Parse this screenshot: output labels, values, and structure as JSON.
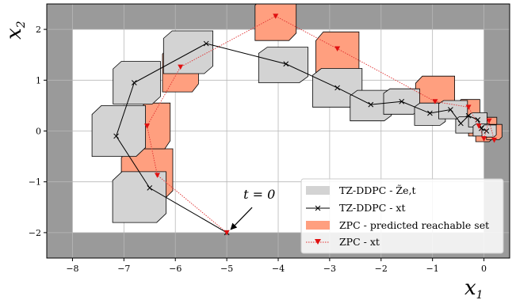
{
  "chart_data": {
    "type": "line",
    "xlabel": "x",
    "xlabel_sub": "1",
    "ylabel": "x",
    "ylabel_sub": "2",
    "xlim": [
      -8.5,
      0.5
    ],
    "ylim": [
      -2.5,
      2.5
    ],
    "xticks": [
      -8,
      -7,
      -6,
      -5,
      -4,
      -3,
      -2,
      -1,
      0
    ],
    "xtick_labels": [
      "−8",
      "−7",
      "−6",
      "−5",
      "−4",
      "−3",
      "−2",
      "−1",
      "0"
    ],
    "yticks": [
      -2,
      -1,
      0,
      1,
      2
    ],
    "ytick_labels": [
      "−2",
      "−1",
      "0",
      "1",
      "2"
    ],
    "grid": true,
    "legend_position": "lower-right",
    "constraint_box": {
      "x": [
        -8,
        0
      ],
      "y": [
        -2,
        2
      ]
    },
    "annotation": {
      "text": "t = 0",
      "point": [
        -5,
        -2
      ],
      "text_at": [
        -4.6,
        -1.38
      ]
    },
    "colors": {
      "outside_region": "#9a9a9a",
      "tzddpc_set_fill": "#d3d3d3",
      "zpc_set_fill": "#ff9f7f",
      "tzddpc_line": "#000000",
      "zpc_line": "#e03030",
      "zpc_marker": "#e01010"
    },
    "series": [
      {
        "name": "TZ-DDPC - Z̃e,t",
        "kind": "reachable_sets",
        "centers": [
          [
            -5.75,
            1.55
          ],
          [
            -6.75,
            0.95
          ],
          [
            -7.1,
            0.0
          ],
          [
            -6.7,
            -1.3
          ],
          [
            -3.9,
            1.3
          ],
          [
            -2.85,
            0.85
          ],
          [
            -2.2,
            0.5
          ],
          [
            -1.6,
            0.58
          ],
          [
            -1.05,
            0.33
          ],
          [
            -0.6,
            0.42
          ],
          [
            -0.35,
            0.12
          ],
          [
            -0.12,
            0.22
          ],
          [
            -0.05,
            0.02
          ],
          [
            0.1,
            0.0
          ]
        ],
        "half_widths": [
          [
            0.48,
            0.42
          ],
          [
            0.46,
            0.42
          ],
          [
            0.52,
            0.5
          ],
          [
            0.52,
            0.5
          ],
          [
            0.48,
            0.35
          ],
          [
            0.48,
            0.38
          ],
          [
            0.4,
            0.3
          ],
          [
            0.35,
            0.25
          ],
          [
            0.3,
            0.22
          ],
          [
            0.28,
            0.18
          ],
          [
            0.2,
            0.16
          ],
          [
            0.18,
            0.14
          ],
          [
            0.16,
            0.12
          ],
          [
            0.14,
            0.12
          ]
        ]
      },
      {
        "name": "TZ-DDPC - x_t",
        "kind": "trajectory",
        "x": [
          -5.0,
          -6.5,
          -7.15,
          -6.8,
          -5.4,
          -3.85,
          -2.85,
          -2.2,
          -1.6,
          -1.05,
          -0.65,
          -0.45,
          -0.3,
          -0.12,
          -0.05,
          0.05
        ],
        "y": [
          -2.0,
          -1.12,
          -0.1,
          0.95,
          1.72,
          1.32,
          0.85,
          0.52,
          0.58,
          0.35,
          0.42,
          0.15,
          0.3,
          0.22,
          0.05,
          0.0
        ]
      },
      {
        "name": "ZPC - predicted reachable set",
        "kind": "reachable_sets",
        "centers": [
          [
            -6.55,
            -0.85
          ],
          [
            -6.4,
            0.1
          ],
          [
            -5.9,
            1.22
          ],
          [
            -4.05,
            2.2
          ],
          [
            -2.85,
            1.45
          ],
          [
            -0.95,
            0.68
          ],
          [
            -0.3,
            0.42
          ],
          [
            -0.12,
            0.08
          ],
          [
            0.0,
            -0.05
          ],
          [
            0.1,
            0.12
          ],
          [
            0.2,
            -0.02
          ]
        ],
        "half_widths": [
          [
            0.5,
            0.5
          ],
          [
            0.3,
            0.45
          ],
          [
            0.35,
            0.45
          ],
          [
            0.4,
            0.42
          ],
          [
            0.42,
            0.5
          ],
          [
            0.38,
            0.4
          ],
          [
            0.22,
            0.2
          ],
          [
            0.18,
            0.18
          ],
          [
            0.16,
            0.16
          ],
          [
            0.15,
            0.15
          ],
          [
            0.15,
            0.15
          ]
        ]
      },
      {
        "name": "ZPC - x_t",
        "kind": "trajectory",
        "x": [
          -5.0,
          -6.35,
          -6.55,
          -5.9,
          -4.05,
          -2.85,
          -0.95,
          -0.3,
          -0.1,
          0.0,
          0.1,
          0.2
        ],
        "y": [
          -2.0,
          -0.87,
          0.1,
          1.26,
          2.26,
          1.62,
          0.58,
          0.47,
          0.1,
          -0.15,
          0.2,
          -0.18
        ]
      }
    ],
    "legend": [
      {
        "label": "TZ-DDPC - Z̃e,t",
        "kind": "patch",
        "color": "#d3d3d3"
      },
      {
        "label": "TZ-DDPC - xt",
        "kind": "line-x",
        "color": "#000000"
      },
      {
        "label": "ZPC - predicted reachable set",
        "kind": "patch",
        "color": "#ff9f7f"
      },
      {
        "label": "ZPC - xt",
        "kind": "line-triangle",
        "color": "#e03030"
      }
    ]
  }
}
